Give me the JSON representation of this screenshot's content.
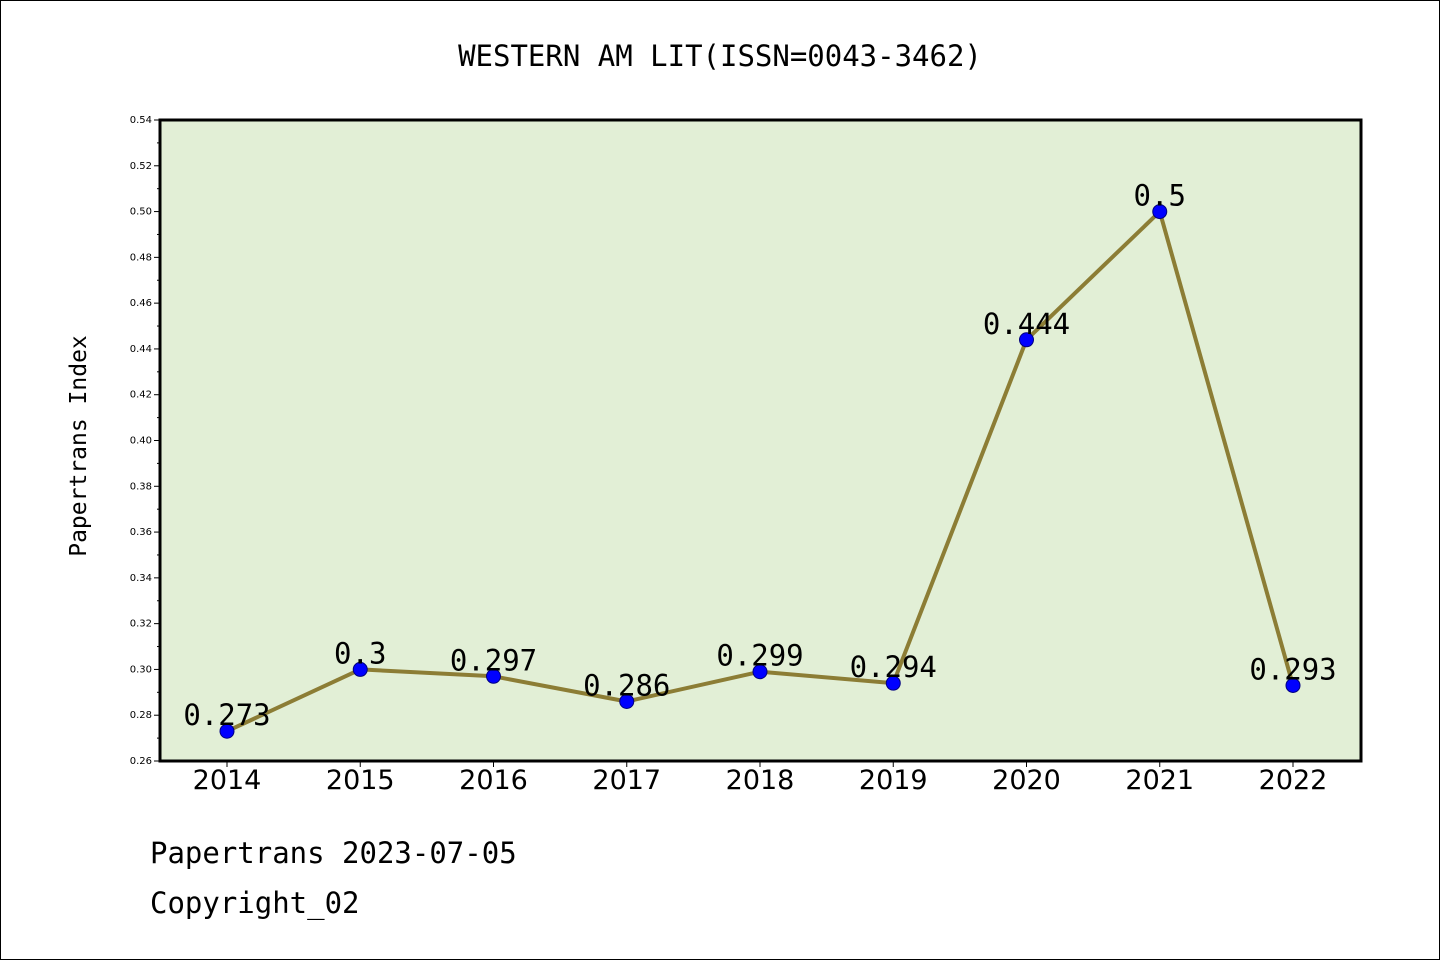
{
  "chart_data": {
    "type": "line",
    "title": "WESTERN AM LIT(ISSN=0043-3462)",
    "xlabel": "",
    "ylabel": "Papertrans Index",
    "categories": [
      "2014",
      "2015",
      "2016",
      "2017",
      "2018",
      "2019",
      "2020",
      "2021",
      "2022"
    ],
    "series": [
      {
        "values": [
          0.273,
          0.3,
          0.297,
          0.286,
          0.299,
          0.294,
          0.444,
          0.5,
          0.293
        ],
        "labels": [
          "0.273",
          "0.3",
          "0.297",
          "0.286",
          "0.299",
          "0.294",
          "0.444",
          "0.5",
          "0.293"
        ]
      }
    ],
    "ylim": [
      0.26,
      0.54
    ],
    "yticks": [
      "0.26",
      "0.28",
      "0.30",
      "0.32",
      "0.34",
      "0.36",
      "0.38",
      "0.40",
      "0.42",
      "0.44",
      "0.46",
      "0.48",
      "0.50",
      "0.52",
      "0.54"
    ],
    "grid": false,
    "legend": "none",
    "colors": {
      "plot_background": "#e2efd6",
      "line": "#8c7d35",
      "marker": "#0000ff",
      "axis": "#000000"
    }
  },
  "footer": {
    "date_line": "Papertrans 2023-07-05",
    "copyright_line": "Copyright_02"
  }
}
